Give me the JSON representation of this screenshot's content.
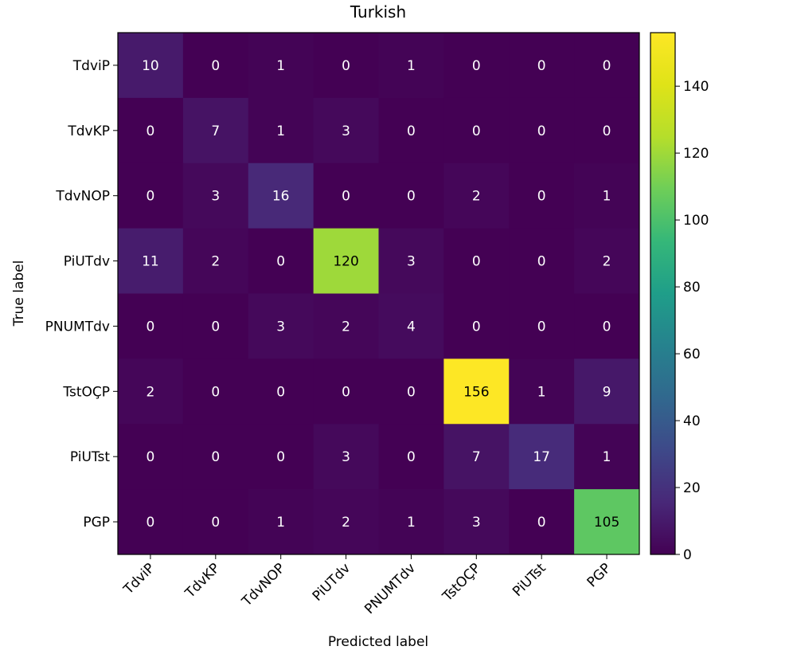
{
  "chart_data": {
    "type": "heatmap",
    "title": "Turkish",
    "xlabel": "Predicted label",
    "ylabel": "True label",
    "colormap": "viridis",
    "x_categories": [
      "TdviP",
      "TdvKP",
      "TdvNOP",
      "PiUTdv",
      "PNUMTdv",
      "TstOÇP",
      "PiUTst",
      "PGP"
    ],
    "y_categories": [
      "TdviP",
      "TdvKP",
      "TdvNOP",
      "PiUTdv",
      "PNUMTdv",
      "TstOÇP",
      "PiUTst",
      "PGP"
    ],
    "values": [
      [
        10,
        0,
        1,
        0,
        1,
        0,
        0,
        0
      ],
      [
        0,
        7,
        1,
        3,
        0,
        0,
        0,
        0
      ],
      [
        0,
        3,
        16,
        0,
        0,
        2,
        0,
        1
      ],
      [
        11,
        2,
        0,
        120,
        3,
        0,
        0,
        2
      ],
      [
        0,
        0,
        3,
        2,
        4,
        0,
        0,
        0
      ],
      [
        2,
        0,
        0,
        0,
        0,
        156,
        1,
        9
      ],
      [
        0,
        0,
        0,
        3,
        0,
        7,
        17,
        1
      ],
      [
        0,
        0,
        1,
        2,
        1,
        3,
        0,
        105
      ]
    ],
    "colorbar": {
      "min": 0,
      "max": 156,
      "ticks": [
        0,
        20,
        40,
        60,
        80,
        100,
        120,
        140
      ]
    }
  }
}
